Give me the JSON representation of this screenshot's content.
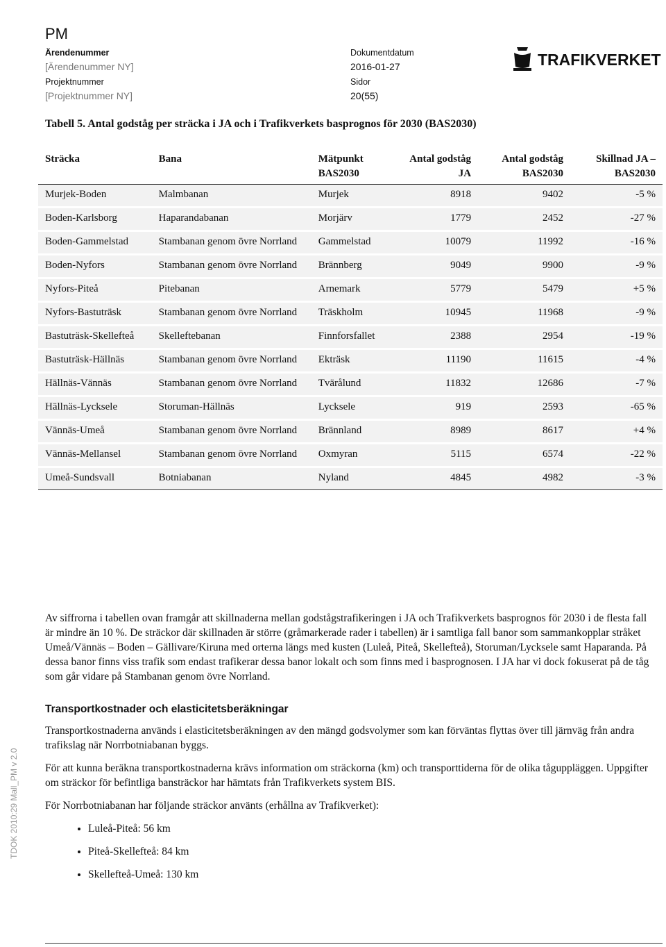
{
  "header": {
    "title": "PM",
    "fields": [
      {
        "label": "Ärendenummer",
        "value": "[Ärendenummer NY]"
      },
      {
        "label": "Projektnummer",
        "value": "[Projektnummer NY]"
      },
      {
        "label": "Dokumentdatum",
        "value": "2016-01-27"
      },
      {
        "label": "Sidor",
        "value": "20(55)"
      }
    ],
    "logo": "TRAFIKVERKET"
  },
  "table": {
    "caption": "Tabell 5. Antal godståg per sträcka i JA och i Trafikverkets basprognos för 2030 (BAS2030)",
    "headers": [
      "Sträcka",
      "Bana",
      "Mätpunkt BAS2030",
      "Antal godståg JA",
      "Antal godståg BAS2030",
      "Skillnad JA – BAS2030"
    ],
    "rows": [
      [
        "Murjek-Boden",
        "Malmbanan",
        "Murjek",
        "8918",
        "9402",
        "-5 %"
      ],
      [
        "Boden-Karlsborg",
        "Haparandabanan",
        "Morjärv",
        "1779",
        "2452",
        "-27 %"
      ],
      [
        "Boden-Gammelstad",
        "Stambanan genom övre Norrland",
        "Gammelstad",
        "10079",
        "11992",
        "-16 %"
      ],
      [
        "Boden-Nyfors",
        "Stambanan genom övre Norrland",
        "Brännberg",
        "9049",
        "9900",
        "-9 %"
      ],
      [
        "Nyfors-Piteå",
        "Pitebanan",
        "Arnemark",
        "5779",
        "5479",
        "+5 %"
      ],
      [
        "Nyfors-Bastuträsk",
        "Stambanan genom övre Norrland",
        "Träskholm",
        "10945",
        "11968",
        "-9 %"
      ],
      [
        "Bastuträsk-Skellefteå",
        "Skelleftebanan",
        "Finnforsfallet",
        "2388",
        "2954",
        "-19 %"
      ],
      [
        "Bastuträsk-Hällnäs",
        "Stambanan genom övre Norrland",
        "Ekträsk",
        "11190",
        "11615",
        "-4 %"
      ],
      [
        "Hällnäs-Vännäs",
        "Stambanan genom övre Norrland",
        "Tvärålund",
        "11832",
        "12686",
        "-7 %"
      ],
      [
        "Hällnäs-Lycksele",
        "Storuman-Hällnäs",
        "Lycksele",
        "919",
        "2593",
        "-65 %"
      ],
      [
        "Vännäs-Umeå",
        "Stambanan genom övre Norrland",
        "Brännland",
        "8989",
        "8617",
        "+4 %"
      ],
      [
        "Vännäs-Mellansel",
        "Stambanan genom övre Norrland",
        "Oxmyran",
        "5115",
        "6574",
        "-22 %"
      ],
      [
        "Umeå-Sundsvall",
        "Botniabanan",
        "Nyland",
        "4845",
        "4982",
        "-3 %"
      ]
    ]
  },
  "body": {
    "paragraph1": "Av siffrorna i tabellen ovan framgår att skillnaderna mellan godstågstrafikeringen i JA och Trafikverkets basprognos för 2030 i de flesta fall är mindre än 10 %. De sträckor där skillnaden är större (gråmarkerade rader i tabellen) är i samtliga fall banor som sammankopplar stråket Umeå/Vännäs – Boden – Gällivare/Kiruna med orterna längs med kusten (Luleå, Piteå, Skellefteå), Storuman/Lycksele samt Haparanda. På dessa banor finns viss trafik som endast trafikerar dessa banor lokalt och som finns med i basprognosen. I JA har vi dock fokuserat på de tåg som går vidare på Stambanan genom övre Norrland.",
    "heading": "Transportkostnader och elasticitetsberäkningar",
    "paragraph2": "Transportkostnaderna används i elasticitetsberäkningen av den mängd godsvolymer som kan förväntas flyttas över till järnväg från andra trafikslag när Norrbotniabanan byggs.",
    "paragraph3": "För att kunna beräkna transportkostnaderna krävs information om sträckorna (km) och transporttiderna för de olika tåguppläggen. Uppgifter om sträckor för befintliga bansträckor har hämtats från Trafikverkets system BIS.",
    "paragraph4": "För Norrbotniabanan har följande sträckor använts (erhållna av Trafikverket):",
    "bullets": [
      "Luleå-Piteå: 56 km",
      "Piteå-Skellefteå: 84 km",
      "Skellefteå-Umeå: 130 km"
    ]
  },
  "footer": {
    "template": "TDOK 2010:29 Mall_PM v 2.0"
  }
}
